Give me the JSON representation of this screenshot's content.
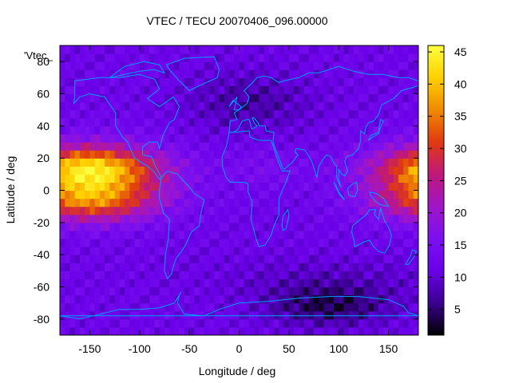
{
  "chart_data": {
    "type": "heatmap",
    "title": "VTEC / TECU 20070406_096.00000",
    "key_label": "'Vtec_",
    "xlabel": "Longitude / deg",
    "ylabel": "Latitude / deg",
    "xlim": [
      -180,
      180
    ],
    "ylim": [
      -90,
      90
    ],
    "x_ticks": [
      -150,
      -100,
      -50,
      0,
      50,
      100,
      150
    ],
    "y_ticks": [
      -80,
      -60,
      -40,
      -20,
      0,
      20,
      40,
      60,
      80
    ],
    "colorbar": {
      "range": [
        1,
        46
      ],
      "ticks": [
        5,
        10,
        15,
        20,
        25,
        30,
        35,
        40,
        45
      ]
    },
    "colormap": [
      "#000000",
      "#3a0090",
      "#6a00e8",
      "#7b10f0",
      "#a016c8",
      "#c0187a",
      "#e03a10",
      "#f08a00",
      "#ffd000",
      "#ffff40"
    ],
    "coastline_color": "#00a0ff",
    "grid": false,
    "legend_position": "top-left",
    "lon_step": 5,
    "lat_step": 5,
    "field_summary": {
      "background_tecu": 12,
      "equatorial_anomaly_peak_tecu": 44,
      "anomaly_center_longitude_deg": -150,
      "anomaly_center_latitude_deg": 8,
      "minimum_tecu": 2,
      "minimum_region": "south polar, longitude 60 to 120"
    }
  }
}
